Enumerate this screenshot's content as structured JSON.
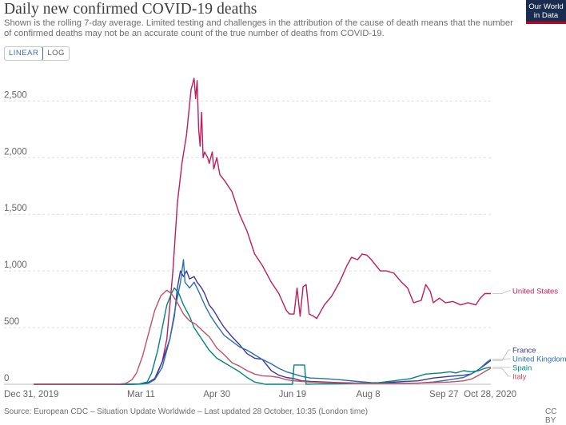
{
  "header": {
    "title": "Daily new confirmed COVID-19 deaths",
    "subtitle": "Shown is the rolling 7-day average. Limited testing and challenges in the attribution of the cause of death means that the number of confirmed deaths may not be an accurate count of the true number of deaths from COVID-19.",
    "logo_line1": "Our World",
    "logo_line2": "in Data"
  },
  "controls": {
    "linear_label": "LINEAR",
    "log_label": "LOG",
    "selected": "LINEAR"
  },
  "footer": {
    "source": "Source: European CDC – Situation Update Worldwide – Last updated 28 October, 10:35 (London time)",
    "license": "CC BY"
  },
  "chart_data": {
    "type": "line",
    "x_ticks": [
      "Dec 31, 2019",
      "Mar 11",
      "Apr 30",
      "Jun 19",
      "Aug 8",
      "Sep 27",
      "Oct 28, 2020"
    ],
    "xlim": [
      "2019-12-31",
      "2020-10-28"
    ],
    "ylim": [
      0,
      2700
    ],
    "y_ticks": [
      0,
      500,
      1000,
      1500,
      2000,
      2500
    ],
    "grid": true,
    "legend": "right-end labels",
    "series": [
      {
        "name": "United States",
        "color": "#be1d5f",
        "points": [
          [
            "2019-12-31",
            0
          ],
          [
            "2020-02-28",
            0
          ],
          [
            "2020-03-10",
            2
          ],
          [
            "2020-03-15",
            8
          ],
          [
            "2020-03-20",
            40
          ],
          [
            "2020-03-25",
            200
          ],
          [
            "2020-03-28",
            400
          ],
          [
            "2020-04-01",
            1000
          ],
          [
            "2020-04-04",
            1600
          ],
          [
            "2020-04-07",
            1950
          ],
          [
            "2020-04-10",
            2200
          ],
          [
            "2020-04-13",
            2600
          ],
          [
            "2020-04-15",
            2700
          ],
          [
            "2020-04-16",
            2520
          ],
          [
            "2020-04-17",
            2680
          ],
          [
            "2020-04-18",
            2250
          ],
          [
            "2020-04-19",
            2100
          ],
          [
            "2020-04-20",
            2400
          ],
          [
            "2020-04-21",
            2000
          ],
          [
            "2020-04-22",
            2050
          ],
          [
            "2020-04-24",
            2000
          ],
          [
            "2020-04-25",
            1950
          ],
          [
            "2020-04-27",
            2050
          ],
          [
            "2020-04-28",
            1900
          ],
          [
            "2020-04-30",
            2000
          ],
          [
            "2020-05-02",
            1850
          ],
          [
            "2020-05-05",
            1800
          ],
          [
            "2020-05-10",
            1700
          ],
          [
            "2020-05-15",
            1500
          ],
          [
            "2020-05-20",
            1350
          ],
          [
            "2020-05-25",
            1150
          ],
          [
            "2020-05-30",
            1050
          ],
          [
            "2020-06-05",
            900
          ],
          [
            "2020-06-10",
            800
          ],
          [
            "2020-06-15",
            650
          ],
          [
            "2020-06-17",
            620
          ],
          [
            "2020-06-20",
            620
          ],
          [
            "2020-06-22",
            850
          ],
          [
            "2020-06-24",
            600
          ],
          [
            "2020-06-26",
            860
          ],
          [
            "2020-06-28",
            880
          ],
          [
            "2020-06-30",
            620
          ],
          [
            "2020-07-03",
            600
          ],
          [
            "2020-07-05",
            580
          ],
          [
            "2020-07-10",
            700
          ],
          [
            "2020-07-15",
            780
          ],
          [
            "2020-07-20",
            900
          ],
          [
            "2020-07-25",
            1050
          ],
          [
            "2020-07-28",
            1120
          ],
          [
            "2020-08-01",
            1100
          ],
          [
            "2020-08-04",
            1150
          ],
          [
            "2020-08-07",
            1140
          ],
          [
            "2020-08-10",
            1100
          ],
          [
            "2020-08-13",
            1050
          ],
          [
            "2020-08-16",
            1000
          ],
          [
            "2020-08-20",
            1000
          ],
          [
            "2020-08-25",
            980
          ],
          [
            "2020-08-30",
            900
          ],
          [
            "2020-09-03",
            850
          ],
          [
            "2020-09-07",
            720
          ],
          [
            "2020-09-12",
            740
          ],
          [
            "2020-09-15",
            880
          ],
          [
            "2020-09-18",
            820
          ],
          [
            "2020-09-20",
            720
          ],
          [
            "2020-09-24",
            760
          ],
          [
            "2020-09-28",
            720
          ],
          [
            "2020-10-03",
            730
          ],
          [
            "2020-10-08",
            700
          ],
          [
            "2020-10-13",
            720
          ],
          [
            "2020-10-18",
            700
          ],
          [
            "2020-10-21",
            760
          ],
          [
            "2020-10-24",
            800
          ],
          [
            "2020-10-28",
            800
          ]
        ]
      },
      {
        "name": "France",
        "color": "#3f3697",
        "points": [
          [
            "2019-12-31",
            0
          ],
          [
            "2020-03-05",
            0
          ],
          [
            "2020-03-10",
            3
          ],
          [
            "2020-03-15",
            10
          ],
          [
            "2020-03-20",
            50
          ],
          [
            "2020-03-25",
            200
          ],
          [
            "2020-03-30",
            400
          ],
          [
            "2020-04-02",
            600
          ],
          [
            "2020-04-04",
            850
          ],
          [
            "2020-04-06",
            1000
          ],
          [
            "2020-04-08",
            950
          ],
          [
            "2020-04-10",
            1000
          ],
          [
            "2020-04-12",
            930
          ],
          [
            "2020-04-15",
            950
          ],
          [
            "2020-04-17",
            900
          ],
          [
            "2020-04-20",
            850
          ],
          [
            "2020-04-22",
            800
          ],
          [
            "2020-04-25",
            700
          ],
          [
            "2020-04-28",
            650
          ],
          [
            "2020-05-02",
            560
          ],
          [
            "2020-05-05",
            500
          ],
          [
            "2020-05-10",
            420
          ],
          [
            "2020-05-15",
            350
          ],
          [
            "2020-05-20",
            270
          ],
          [
            "2020-05-25",
            230
          ],
          [
            "2020-05-30",
            220
          ],
          [
            "2020-06-05",
            120
          ],
          [
            "2020-06-10",
            80
          ],
          [
            "2020-06-15",
            60
          ],
          [
            "2020-06-20",
            50
          ],
          [
            "2020-06-25",
            30
          ],
          [
            "2020-07-01",
            25
          ],
          [
            "2020-07-10",
            20
          ],
          [
            "2020-07-20",
            15
          ],
          [
            "2020-08-01",
            10
          ],
          [
            "2020-08-10",
            12
          ],
          [
            "2020-08-20",
            15
          ],
          [
            "2020-09-01",
            25
          ],
          [
            "2020-09-10",
            30
          ],
          [
            "2020-09-20",
            55
          ],
          [
            "2020-10-01",
            70
          ],
          [
            "2020-10-10",
            80
          ],
          [
            "2020-10-15",
            90
          ],
          [
            "2020-10-20",
            130
          ],
          [
            "2020-10-25",
            180
          ],
          [
            "2020-10-28",
            210
          ]
        ]
      },
      {
        "name": "United Kingdom",
        "color": "#2c6eb5",
        "points": [
          [
            "2019-12-31",
            0
          ],
          [
            "2020-03-08",
            0
          ],
          [
            "2020-03-12",
            2
          ],
          [
            "2020-03-16",
            10
          ],
          [
            "2020-03-20",
            40
          ],
          [
            "2020-03-25",
            150
          ],
          [
            "2020-03-30",
            400
          ],
          [
            "2020-04-03",
            700
          ],
          [
            "2020-04-06",
            900
          ],
          [
            "2020-04-08",
            1100
          ],
          [
            "2020-04-09",
            900
          ],
          [
            "2020-04-12",
            850
          ],
          [
            "2020-04-15",
            900
          ],
          [
            "2020-04-18",
            820
          ],
          [
            "2020-04-22",
            700
          ],
          [
            "2020-04-26",
            600
          ],
          [
            "2020-04-30",
            520
          ],
          [
            "2020-05-05",
            430
          ],
          [
            "2020-05-10",
            380
          ],
          [
            "2020-05-15",
            330
          ],
          [
            "2020-05-20",
            300
          ],
          [
            "2020-05-25",
            260
          ],
          [
            "2020-05-30",
            220
          ],
          [
            "2020-06-05",
            180
          ],
          [
            "2020-06-10",
            140
          ],
          [
            "2020-06-15",
            110
          ],
          [
            "2020-06-20",
            90
          ],
          [
            "2020-06-25",
            70
          ],
          [
            "2020-07-01",
            55
          ],
          [
            "2020-07-10",
            50
          ],
          [
            "2020-07-20",
            40
          ],
          [
            "2020-08-01",
            25
          ],
          [
            "2020-08-10",
            15
          ],
          [
            "2020-08-20",
            10
          ],
          [
            "2020-09-01",
            8
          ],
          [
            "2020-09-10",
            10
          ],
          [
            "2020-09-20",
            20
          ],
          [
            "2020-10-01",
            40
          ],
          [
            "2020-10-10",
            60
          ],
          [
            "2020-10-15",
            90
          ],
          [
            "2020-10-20",
            130
          ],
          [
            "2020-10-25",
            190
          ],
          [
            "2020-10-28",
            220
          ]
        ]
      },
      {
        "name": "Spain",
        "color": "#00847e",
        "points": [
          [
            "2019-12-31",
            0
          ],
          [
            "2020-03-05",
            0
          ],
          [
            "2020-03-10",
            3
          ],
          [
            "2020-03-15",
            20
          ],
          [
            "2020-03-18",
            100
          ],
          [
            "2020-03-22",
            300
          ],
          [
            "2020-03-25",
            500
          ],
          [
            "2020-03-28",
            700
          ],
          [
            "2020-03-31",
            800
          ],
          [
            "2020-04-02",
            850
          ],
          [
            "2020-04-05",
            800
          ],
          [
            "2020-04-08",
            700
          ],
          [
            "2020-04-12",
            600
          ],
          [
            "2020-04-15",
            500
          ],
          [
            "2020-04-20",
            400
          ],
          [
            "2020-04-25",
            300
          ],
          [
            "2020-04-30",
            230
          ],
          [
            "2020-05-05",
            190
          ],
          [
            "2020-05-10",
            150
          ],
          [
            "2020-05-15",
            110
          ],
          [
            "2020-05-20",
            60
          ],
          [
            "2020-05-25",
            20
          ],
          [
            "2020-06-01",
            0
          ],
          [
            "2020-06-10",
            0
          ],
          [
            "2020-06-19",
            0
          ],
          [
            "2020-06-20",
            170
          ],
          [
            "2020-06-27",
            170
          ],
          [
            "2020-06-28",
            0
          ],
          [
            "2020-07-05",
            2
          ],
          [
            "2020-07-15",
            3
          ],
          [
            "2020-07-25",
            5
          ],
          [
            "2020-08-05",
            10
          ],
          [
            "2020-08-15",
            15
          ],
          [
            "2020-08-25",
            30
          ],
          [
            "2020-09-05",
            50
          ],
          [
            "2020-09-15",
            90
          ],
          [
            "2020-09-25",
            100
          ],
          [
            "2020-10-01",
            110
          ],
          [
            "2020-10-05",
            100
          ],
          [
            "2020-10-10",
            120
          ],
          [
            "2020-10-15",
            110
          ],
          [
            "2020-10-20",
            120
          ],
          [
            "2020-10-24",
            140
          ],
          [
            "2020-10-28",
            150
          ]
        ]
      },
      {
        "name": "Italy",
        "color": "#c15065",
        "points": [
          [
            "2019-12-31",
            0
          ],
          [
            "2020-02-21",
            0
          ],
          [
            "2020-02-26",
            2
          ],
          [
            "2020-03-01",
            8
          ],
          [
            "2020-03-05",
            40
          ],
          [
            "2020-03-08",
            100
          ],
          [
            "2020-03-12",
            250
          ],
          [
            "2020-03-16",
            450
          ],
          [
            "2020-03-20",
            650
          ],
          [
            "2020-03-24",
            780
          ],
          [
            "2020-03-28",
            830
          ],
          [
            "2020-03-31",
            800
          ],
          [
            "2020-04-04",
            720
          ],
          [
            "2020-04-08",
            620
          ],
          [
            "2020-04-12",
            560
          ],
          [
            "2020-04-16",
            530
          ],
          [
            "2020-04-20",
            480
          ],
          [
            "2020-04-25",
            420
          ],
          [
            "2020-04-30",
            320
          ],
          [
            "2020-05-05",
            260
          ],
          [
            "2020-05-10",
            190
          ],
          [
            "2020-05-15",
            160
          ],
          [
            "2020-05-20",
            120
          ],
          [
            "2020-05-25",
            90
          ],
          [
            "2020-05-30",
            75
          ],
          [
            "2020-06-05",
            70
          ],
          [
            "2020-06-10",
            60
          ],
          [
            "2020-06-15",
            40
          ],
          [
            "2020-06-20",
            30
          ],
          [
            "2020-06-30",
            20
          ],
          [
            "2020-07-10",
            15
          ],
          [
            "2020-07-20",
            12
          ],
          [
            "2020-08-01",
            8
          ],
          [
            "2020-08-10",
            6
          ],
          [
            "2020-08-20",
            6
          ],
          [
            "2020-09-01",
            8
          ],
          [
            "2020-09-10",
            10
          ],
          [
            "2020-09-20",
            15
          ],
          [
            "2020-10-01",
            20
          ],
          [
            "2020-10-10",
            30
          ],
          [
            "2020-10-15",
            45
          ],
          [
            "2020-10-20",
            80
          ],
          [
            "2020-10-25",
            120
          ],
          [
            "2020-10-28",
            140
          ]
        ]
      }
    ],
    "end_labels": [
      "France",
      "United Kingdom",
      "Spain",
      "Italy",
      "United States"
    ]
  }
}
